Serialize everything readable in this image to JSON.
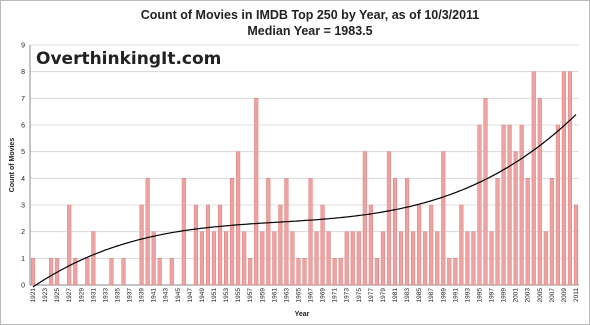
{
  "chart_data": {
    "type": "bar",
    "title": "Count of Movies in IMDB Top 250 by Year, as of 10/3/2011",
    "subtitle": "Median Year = 1983.5",
    "watermark": "OverthinkingIt.com",
    "x_label": "Year",
    "y_label": "Count of Movies",
    "categories": [
      "1921",
      null,
      "1923",
      null,
      "1925",
      null,
      "1927",
      null,
      "1929",
      null,
      "1931",
      null,
      "1933",
      null,
      "1935",
      null,
      "1937",
      null,
      "1939",
      null,
      "1941",
      null,
      "1943",
      null,
      "1945",
      null,
      "1947",
      null,
      "1949",
      null,
      "1951",
      null,
      "1953",
      null,
      "1955",
      null,
      "1957",
      null,
      "1959",
      null,
      "1961",
      null,
      "1963",
      null,
      "1965",
      null,
      "1967",
      null,
      "1969",
      null,
      "1971",
      null,
      "1973",
      null,
      "1975",
      null,
      "1977",
      null,
      "1979",
      null,
      "1981",
      null,
      "1983",
      null,
      "1985",
      null,
      "1987",
      null,
      "1989",
      null,
      "1991",
      null,
      "1993",
      null,
      "1995",
      null,
      "1997",
      null,
      "1999",
      null,
      "2001",
      null,
      "2003",
      null,
      "2005",
      null,
      "2007",
      null,
      "2009",
      null,
      "2011"
    ],
    "values": [
      1,
      0,
      0,
      1,
      1,
      0,
      3,
      1,
      0,
      1,
      2,
      0,
      0,
      1,
      0,
      1,
      0,
      0,
      3,
      4,
      2,
      1,
      0,
      1,
      0,
      4,
      0,
      3,
      2,
      3,
      2,
      3,
      2,
      4,
      5,
      2,
      1,
      7,
      2,
      4,
      2,
      3,
      4,
      2,
      1,
      1,
      4,
      2,
      3,
      2,
      1,
      1,
      2,
      2,
      2,
      5,
      3,
      1,
      2,
      5,
      4,
      2,
      4,
      2,
      3,
      2,
      3,
      2,
      5,
      1,
      1,
      3,
      2,
      2,
      6,
      7,
      2,
      4,
      6,
      6,
      5,
      6,
      4,
      8,
      7,
      2,
      4,
      6,
      8,
      8,
      3
    ],
    "color": "#eea3a3",
    "trendline": true,
    "trendline_color": "#000000",
    "ylim": [
      0,
      9
    ],
    "yticks": [
      0,
      1,
      2,
      3,
      4,
      5,
      6,
      7,
      8,
      9
    ],
    "grid": true
  }
}
